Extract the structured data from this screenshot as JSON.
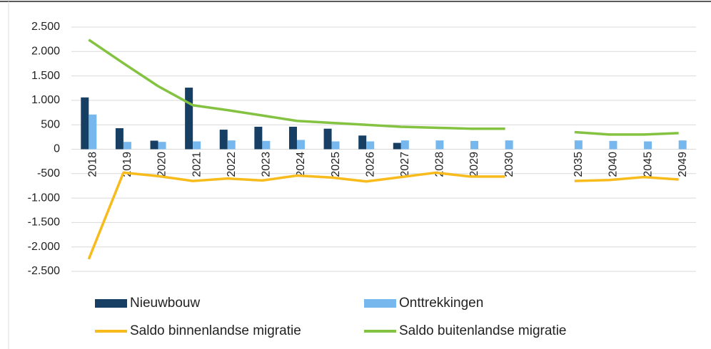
{
  "chart_data": {
    "type": "bar",
    "categories": [
      "2018",
      "2019",
      "2020",
      "2021",
      "2022",
      "2023",
      "2024",
      "2025",
      "2026",
      "2027",
      "2028",
      "2029",
      "2030",
      null,
      "2035",
      "2040",
      "2045",
      "2049"
    ],
    "ylim": [
      -2500,
      2500
    ],
    "yticks": [
      {
        "value": 2500,
        "label": "2.500"
      },
      {
        "value": 2000,
        "label": "2.000"
      },
      {
        "value": 1500,
        "label": "1.500"
      },
      {
        "value": 1000,
        "label": "1.000"
      },
      500,
      0,
      {
        "value": -500,
        "label": "-500"
      },
      {
        "value": -1000,
        "label": "-1.000"
      },
      {
        "value": -1500,
        "label": "-1.500"
      },
      {
        "value": -2000,
        "label": "-2.000"
      },
      {
        "value": -2500,
        "label": "-2.500"
      }
    ],
    "grid": true,
    "series": [
      {
        "name": "Nieuwbouw",
        "type": "bar",
        "color": "#163f63",
        "values": [
          1060,
          430,
          175,
          1260,
          400,
          460,
          460,
          420,
          280,
          130,
          null,
          null,
          null,
          null,
          null,
          null,
          null,
          null
        ]
      },
      {
        "name": "Onttrekkingen",
        "type": "bar",
        "color": "#76b8ee",
        "values": [
          710,
          150,
          150,
          160,
          180,
          170,
          190,
          160,
          160,
          180,
          180,
          170,
          180,
          null,
          180,
          170,
          160,
          180
        ]
      },
      {
        "name": "Saldo binnenlandse migratie",
        "type": "line",
        "color": "#f8bb1c",
        "values": [
          -2250,
          -480,
          -550,
          -650,
          -600,
          -640,
          -540,
          -580,
          -660,
          -570,
          -480,
          -560,
          -560,
          null,
          -650,
          -630,
          -570,
          -620
        ]
      },
      {
        "name": "Saldo buitenlandse migratie",
        "type": "line",
        "color": "#84c241",
        "values": [
          2240,
          1760,
          1290,
          900,
          800,
          690,
          580,
          540,
          500,
          460,
          440,
          420,
          420,
          null,
          350,
          300,
          300,
          330
        ]
      }
    ]
  }
}
